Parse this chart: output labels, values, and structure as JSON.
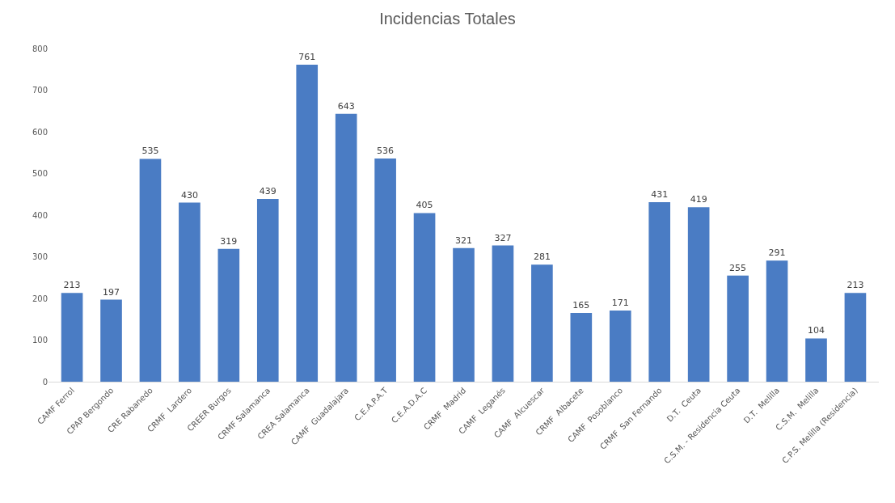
{
  "chart_data": {
    "type": "bar",
    "title": "Incidencias Totales",
    "categories": [
      "CAMF Ferrol",
      "CPAP Bergondo",
      "CRE Rabanedo",
      "CRMF  Lardero",
      "CREER Burgos",
      "CRMF Salamanca",
      "CREA Salamanca",
      "CAMF  Guadalajara",
      "C.E.A.P.A.T",
      "C.E.A.D.A.C",
      "CRMF  Madrid",
      "CAMF  Leganés",
      "CAMF  Alcuescar",
      "CRMF  Albacete",
      "CAMF  Posoblanco",
      "CRMF  San Fernando",
      "D.T.  Ceuta",
      "C.S.M. - Residencia Ceuta",
      "D.T.  Melilla",
      "C.S.M.  Melilla",
      "C.P.S. Melilla (Residencia)"
    ],
    "values": [
      213,
      197,
      535,
      430,
      319,
      439,
      761,
      643,
      536,
      405,
      321,
      327,
      281,
      165,
      171,
      431,
      419,
      255,
      291,
      104,
      213
    ],
    "color": "#4a7cc4",
    "data_labels": true,
    "ylim": [
      0,
      800
    ],
    "yticks": [
      0,
      100,
      200,
      300,
      400,
      500,
      600,
      700,
      800
    ],
    "grid": false
  }
}
